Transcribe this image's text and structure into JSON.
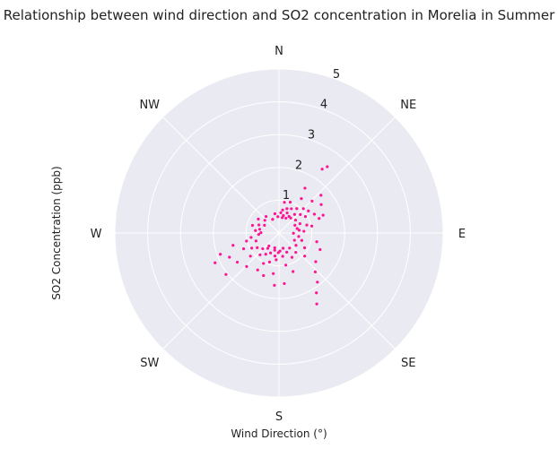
{
  "chart_data": {
    "type": "scatter",
    "projection": "polar",
    "title": "Relationship between wind direction and SO2 concentration in Morelia in Summer",
    "xlabel": "Wind Direction (°)",
    "ylabel": "SO2 Concentration (ppb)",
    "direction_labels": [
      "N",
      "NE",
      "E",
      "SE",
      "S",
      "SW",
      "W",
      "NW"
    ],
    "direction_angles_deg": [
      0,
      45,
      90,
      135,
      180,
      225,
      270,
      315
    ],
    "r_ticks": [
      "1",
      "2",
      "3",
      "4",
      "5"
    ],
    "r_tick_values": [
      1,
      2,
      3,
      4,
      5
    ],
    "rlim": [
      0,
      5
    ],
    "grid": true,
    "background_color": "#eaeaf2",
    "grid_color": "#ffffff",
    "point_color": "#ff1493",
    "points": [
      {
        "deg": 5,
        "r": 0.62
      },
      {
        "deg": 9,
        "r": 0.71
      },
      {
        "deg": 14,
        "r": 0.55
      },
      {
        "deg": 18,
        "r": 0.78
      },
      {
        "deg": 22,
        "r": 0.66
      },
      {
        "deg": 27,
        "r": 0.83
      },
      {
        "deg": 31,
        "r": 0.59
      },
      {
        "deg": 36,
        "r": 0.92
      },
      {
        "deg": 40,
        "r": 0.74
      },
      {
        "deg": 45,
        "r": 1.05
      },
      {
        "deg": 49,
        "r": 0.86
      },
      {
        "deg": 53,
        "r": 1.12
      },
      {
        "deg": 58,
        "r": 0.95
      },
      {
        "deg": 62,
        "r": 1.22
      },
      {
        "deg": 66,
        "r": 0.7
      },
      {
        "deg": 70,
        "r": 1.3
      },
      {
        "deg": 74,
        "r": 0.88
      },
      {
        "deg": 78,
        "r": 1.02
      },
      {
        "deg": 82,
        "r": 0.62
      },
      {
        "deg": 86,
        "r": 0.76
      },
      {
        "deg": 12,
        "r": 0.48
      },
      {
        "deg": 25,
        "r": 0.5
      },
      {
        "deg": 38,
        "r": 0.58
      },
      {
        "deg": 52,
        "r": 0.64
      },
      {
        "deg": 64,
        "r": 0.54
      },
      {
        "deg": 76,
        "r": 0.57
      },
      {
        "deg": 20,
        "r": 1.0
      },
      {
        "deg": 33,
        "r": 1.25
      },
      {
        "deg": 46,
        "r": 1.4
      },
      {
        "deg": 56,
        "r": 1.55
      },
      {
        "deg": 30,
        "r": 1.58
      },
      {
        "deg": 68,
        "r": 1.45
      },
      {
        "deg": 48,
        "r": 1.72
      },
      {
        "deg": 10,
        "r": 0.95
      },
      {
        "deg": 34,
        "r": 2.35
      },
      {
        "deg": 36,
        "r": 2.5
      },
      {
        "deg": 91,
        "r": 0.44
      },
      {
        "deg": 100,
        "r": 0.61
      },
      {
        "deg": 108,
        "r": 0.73
      },
      {
        "deg": 115,
        "r": 0.52
      },
      {
        "deg": 120,
        "r": 0.9
      },
      {
        "deg": 126,
        "r": 0.64
      },
      {
        "deg": 132,
        "r": 1.05
      },
      {
        "deg": 139,
        "r": 0.78
      },
      {
        "deg": 145,
        "r": 0.56
      },
      {
        "deg": 152,
        "r": 0.84
      },
      {
        "deg": 158,
        "r": 0.63
      },
      {
        "deg": 165,
        "r": 0.48
      },
      {
        "deg": 171,
        "r": 0.72
      },
      {
        "deg": 177,
        "r": 0.55
      },
      {
        "deg": 103,
        "r": 1.18
      },
      {
        "deg": 112,
        "r": 1.35
      },
      {
        "deg": 128,
        "r": 1.42
      },
      {
        "deg": 137,
        "r": 1.62
      },
      {
        "deg": 142,
        "r": 1.9
      },
      {
        "deg": 148,
        "r": 2.15
      },
      {
        "deg": 152,
        "r": 2.45
      },
      {
        "deg": 160,
        "r": 1.25
      },
      {
        "deg": 168,
        "r": 1.0
      },
      {
        "deg": 174,
        "r": 1.55
      },
      {
        "deg": 182,
        "r": 0.6
      },
      {
        "deg": 186,
        "r": 0.82
      },
      {
        "deg": 190,
        "r": 0.71
      },
      {
        "deg": 194,
        "r": 0.54
      },
      {
        "deg": 198,
        "r": 0.93
      },
      {
        "deg": 203,
        "r": 0.66
      },
      {
        "deg": 207,
        "r": 1.04
      },
      {
        "deg": 212,
        "r": 0.76
      },
      {
        "deg": 216,
        "r": 0.58
      },
      {
        "deg": 221,
        "r": 0.88
      },
      {
        "deg": 226,
        "r": 0.69
      },
      {
        "deg": 231,
        "r": 1.12
      },
      {
        "deg": 236,
        "r": 0.8
      },
      {
        "deg": 241,
        "r": 0.95
      },
      {
        "deg": 246,
        "r": 1.18
      },
      {
        "deg": 251,
        "r": 0.74
      },
      {
        "deg": 256,
        "r": 1.02
      },
      {
        "deg": 261,
        "r": 0.86
      },
      {
        "deg": 266,
        "r": 0.62
      },
      {
        "deg": 188,
        "r": 1.25
      },
      {
        "deg": 200,
        "r": 1.38
      },
      {
        "deg": 210,
        "r": 1.3
      },
      {
        "deg": 224,
        "r": 1.42
      },
      {
        "deg": 235,
        "r": 1.55
      },
      {
        "deg": 244,
        "r": 1.68
      },
      {
        "deg": 250,
        "r": 1.9
      },
      {
        "deg": 255,
        "r": 1.45
      },
      {
        "deg": 245,
        "r": 2.15
      },
      {
        "deg": 232,
        "r": 2.05
      },
      {
        "deg": 185,
        "r": 1.6
      },
      {
        "deg": 196,
        "r": 0.47
      },
      {
        "deg": 218,
        "r": 0.5
      },
      {
        "deg": 271,
        "r": 0.55
      },
      {
        "deg": 276,
        "r": 0.72
      },
      {
        "deg": 281,
        "r": 0.6
      },
      {
        "deg": 286,
        "r": 0.84
      },
      {
        "deg": 292,
        "r": 0.66
      },
      {
        "deg": 298,
        "r": 0.5
      },
      {
        "deg": 304,
        "r": 0.76
      },
      {
        "deg": 312,
        "r": 0.58
      },
      {
        "deg": 322,
        "r": 0.64
      },
      {
        "deg": 335,
        "r": 0.46
      },
      {
        "deg": 348,
        "r": 0.6
      },
      {
        "deg": 356,
        "r": 0.5
      }
    ]
  }
}
